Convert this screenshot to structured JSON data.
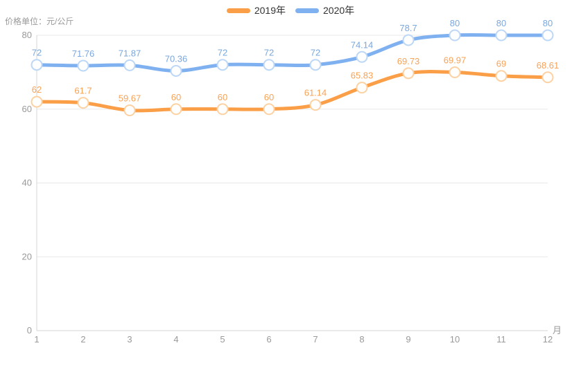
{
  "legend": {
    "items": [
      {
        "label": "2019年"
      },
      {
        "label": "2020年"
      }
    ]
  },
  "chart_data": {
    "type": "line",
    "smooth": true,
    "grid": true,
    "legend_position": "top-center",
    "ylabel": "价格单位：元/公斤",
    "x_axis_unit": "月",
    "categories": [
      "1",
      "2",
      "3",
      "4",
      "5",
      "6",
      "7",
      "8",
      "9",
      "10",
      "11",
      "12"
    ],
    "ylim": [
      0,
      80
    ],
    "yticks": [
      0,
      20,
      40,
      60,
      80
    ],
    "series": [
      {
        "name": "2019年",
        "color": "#fa9f47",
        "marker_stroke": "#fcd2a3",
        "label_color": "#f9a255",
        "values": [
          62,
          61.7,
          59.67,
          60,
          60,
          60,
          61.14,
          65.83,
          69.73,
          69.97,
          69,
          68.61
        ]
      },
      {
        "name": "2020年",
        "color": "#7fb0ef",
        "marker_stroke": "#bdd7f6",
        "label_color": "#7aa7dd",
        "values": [
          72,
          71.76,
          71.87,
          70.36,
          72,
          72,
          72,
          74.14,
          78.7,
          80,
          80,
          80
        ]
      }
    ]
  },
  "colors": {
    "grid_line": "#e8e8e8",
    "axis_line": "#d6d6d6",
    "tick_text": "#999999",
    "legend_text": "#333333"
  }
}
